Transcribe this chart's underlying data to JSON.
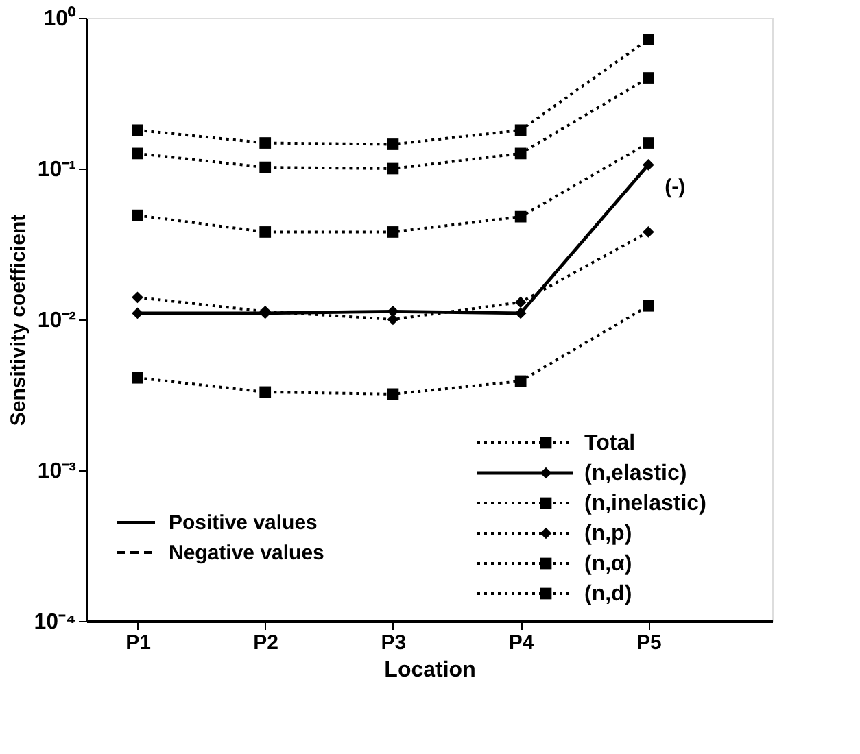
{
  "chart_data": {
    "type": "line",
    "xlabel": "Location",
    "ylabel": "Sensitivity coefficient",
    "categories": [
      "P1",
      "P2",
      "P3",
      "P4",
      "P5"
    ],
    "series": [
      {
        "name": "Total",
        "color": "#000000",
        "marker": "square",
        "line_style": "dotted",
        "values": [
          0.18,
          0.148,
          0.145,
          0.18,
          0.72
        ]
      },
      {
        "name": "(n,elastic)",
        "color": "#000000",
        "marker": "diamond",
        "line_style": "solid",
        "values": [
          0.011,
          0.011,
          0.0113,
          0.011,
          0.106
        ]
      },
      {
        "name": "(n,inelastic)",
        "color": "#000000",
        "marker": "square",
        "line_style": "dotted",
        "values": [
          0.126,
          0.102,
          0.1,
          0.126,
          0.4
        ]
      },
      {
        "name": "(n,p)",
        "color": "#000000",
        "marker": "diamond",
        "line_style": "dotted",
        "values": [
          0.014,
          0.0113,
          0.01,
          0.013,
          0.038
        ]
      },
      {
        "name": "(n,α)",
        "color": "#000000",
        "marker": "square",
        "line_style": "dotted",
        "values": [
          0.049,
          0.038,
          0.038,
          0.048,
          0.148
        ]
      },
      {
        "name": "(n,d)",
        "color": "#000000",
        "marker": "square",
        "line_style": "dotted",
        "values": [
          0.0041,
          0.0033,
          0.0032,
          0.0039,
          0.0123
        ]
      }
    ],
    "log": "y",
    "ylim": [
      0.0001,
      1
    ],
    "yticks": [
      {
        "value": 1,
        "label": "10⁰"
      },
      {
        "value": 0.1,
        "label": "10⁻¹"
      },
      {
        "value": 0.01,
        "label": "10⁻²"
      },
      {
        "value": 0.001,
        "label": "10⁻³"
      },
      {
        "value": 0.0001,
        "label": "10⁻⁴"
      }
    ],
    "legend": "bottom right",
    "grid": false,
    "annotations": [
      {
        "text": "(-)",
        "x": "P5",
        "y": 0.106
      },
      "Positive values",
      "Negative values"
    ]
  }
}
